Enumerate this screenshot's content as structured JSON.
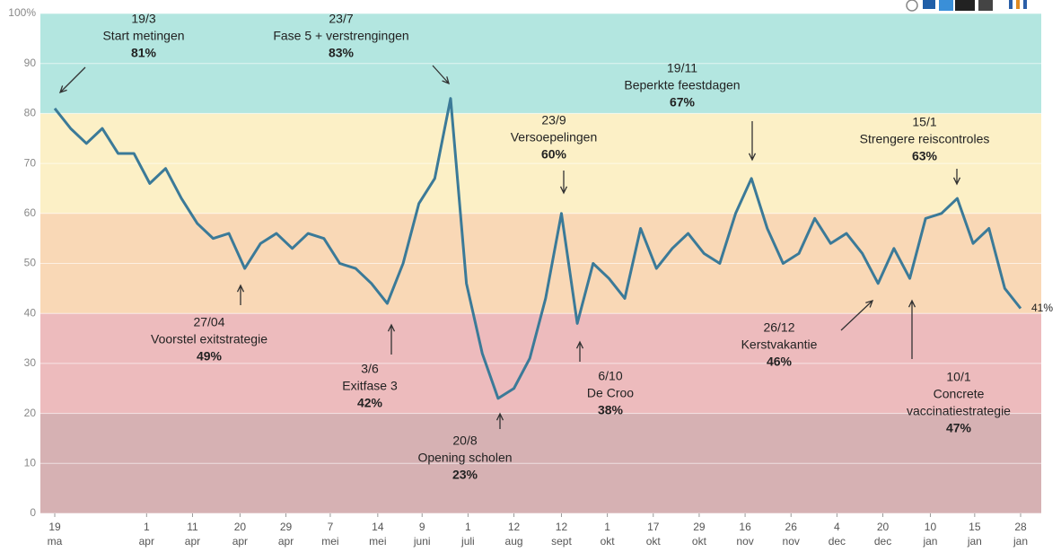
{
  "chart_data": {
    "type": "line",
    "values": [
      81,
      77,
      74,
      77,
      72,
      72,
      66,
      69,
      63,
      58,
      55,
      56,
      49,
      54,
      56,
      53,
      56,
      55,
      50,
      49,
      46,
      42,
      50,
      62,
      67,
      83,
      46,
      32,
      23,
      25,
      31,
      43,
      60,
      38,
      50,
      47,
      43,
      57,
      49,
      53,
      56,
      52,
      50,
      60,
      67,
      57,
      50,
      52,
      59,
      54,
      56,
      52,
      46,
      53,
      47,
      59,
      60,
      63,
      54,
      57,
      45,
      41
    ],
    "color": "#3b7a98",
    "end_label": "41%",
    "xlim": [
      0,
      61
    ],
    "xticks": [
      {
        "value": 0,
        "label": "19",
        "sublabel": "ma"
      },
      {
        "value": 5.8,
        "label": "1",
        "sublabel": "apr"
      },
      {
        "value": 8.7,
        "label": "11",
        "sublabel": "apr"
      },
      {
        "value": 11.7,
        "label": "20",
        "sublabel": "apr"
      },
      {
        "value": 14.6,
        "label": "29",
        "sublabel": "apr"
      },
      {
        "value": 17.4,
        "label": "7",
        "sublabel": "mei"
      },
      {
        "value": 20.4,
        "label": "14",
        "sublabel": "mei"
      },
      {
        "value": 23.2,
        "label": "9",
        "sublabel": "juni"
      },
      {
        "value": 26.1,
        "label": "1",
        "sublabel": "juli"
      },
      {
        "value": 29.0,
        "label": "12",
        "sublabel": "aug"
      },
      {
        "value": 32.0,
        "label": "12",
        "sublabel": "sept"
      },
      {
        "value": 34.9,
        "label": "1",
        "sublabel": "okt"
      },
      {
        "value": 37.8,
        "label": "17",
        "sublabel": "okt"
      },
      {
        "value": 40.7,
        "label": "29",
        "sublabel": "okt"
      },
      {
        "value": 43.6,
        "label": "16",
        "sublabel": "nov"
      },
      {
        "value": 46.5,
        "label": "26",
        "sublabel": "nov"
      },
      {
        "value": 49.4,
        "label": "4",
        "sublabel": "dec"
      },
      {
        "value": 52.3,
        "label": "20",
        "sublabel": "dec"
      },
      {
        "value": 55.3,
        "label": "10",
        "sublabel": "jan"
      },
      {
        "value": 58.1,
        "label": "15",
        "sublabel": "jan"
      },
      {
        "value": 61,
        "label": "28",
        "sublabel": "jan"
      }
    ],
    "ylim": [
      0,
      100
    ],
    "yticks": [
      0,
      10,
      20,
      30,
      40,
      50,
      60,
      70,
      80,
      90,
      {
        "value": 100,
        "label": "100%"
      }
    ],
    "grid": true,
    "bands": [
      {
        "from": 80,
        "to": 100,
        "color": "#b3e6e0"
      },
      {
        "from": 60,
        "to": 80,
        "color": "#fcf0c6"
      },
      {
        "from": 40,
        "to": 60,
        "color": "#f9d8b6"
      },
      {
        "from": 20,
        "to": 40,
        "color": "#edbbbd"
      },
      {
        "from": 0,
        "to": 20,
        "color": "#d6b1b3"
      }
    ],
    "annotations": [
      {
        "date": "19/3",
        "lines": [
          "Start metingen"
        ],
        "value_label": "81%"
      },
      {
        "date": "23/7",
        "lines": [
          "Fase 5 + verstrengingen"
        ],
        "value_label": "83%"
      },
      {
        "date": "19/11",
        "lines": [
          "Beperkte feestdagen"
        ],
        "value_label": "67%"
      },
      {
        "date": "23/9",
        "lines": [
          "Versoepelingen"
        ],
        "value_label": "60%"
      },
      {
        "date": "15/1",
        "lines": [
          "Strengere reiscontroles"
        ],
        "value_label": "63%"
      },
      {
        "date": "27/04",
        "lines": [
          "Voorstel exitstrategie"
        ],
        "value_label": "49%"
      },
      {
        "date": "3/6",
        "lines": [
          "Exitfase 3"
        ],
        "value_label": "42%"
      },
      {
        "date": "20/8",
        "lines": [
          "Opening scholen"
        ],
        "value_label": "23%"
      },
      {
        "date": "6/10",
        "lines": [
          "De Croo"
        ],
        "value_label": "38%"
      },
      {
        "date": "26/12",
        "lines": [
          "Kerstvakantie"
        ],
        "value_label": "46%"
      },
      {
        "date": "10/1",
        "lines": [
          "Concrete",
          "vaccinatiestrategie"
        ],
        "value_label": "47%"
      }
    ]
  }
}
